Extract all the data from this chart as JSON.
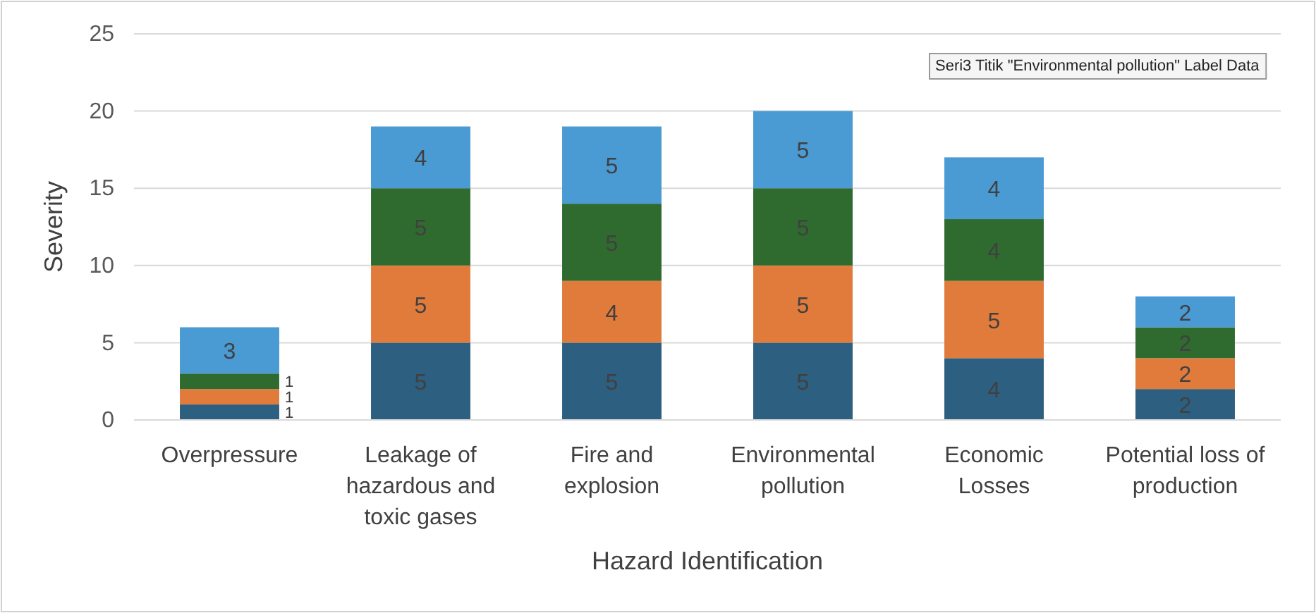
{
  "chart_data": {
    "type": "bar",
    "stacked": true,
    "xlabel": "Hazard Identification",
    "ylabel": "Severity",
    "categories": [
      "Overpressure",
      "Leakage of hazardous and toxic gases",
      "Fire and explosion",
      "Environmental pollution",
      "Economic Losses",
      "Potential loss of production"
    ],
    "series": [
      {
        "color": "#2d5f80",
        "values": [
          1,
          5,
          5,
          5,
          4,
          2
        ]
      },
      {
        "color": "#e07b3c",
        "values": [
          1,
          5,
          4,
          5,
          5,
          2
        ]
      },
      {
        "color": "#2f6b2f",
        "values": [
          1,
          5,
          5,
          5,
          4,
          2
        ]
      },
      {
        "color": "#4a9ad4",
        "values": [
          3,
          4,
          5,
          5,
          4,
          2
        ]
      }
    ],
    "ylim": [
      0,
      25
    ],
    "yticks": [
      0,
      5,
      10,
      15,
      20,
      25
    ],
    "grid": "y",
    "data_labels": true,
    "annotations": [
      "Seri3 Titik \"Environmental pollution\" Label Data"
    ]
  }
}
